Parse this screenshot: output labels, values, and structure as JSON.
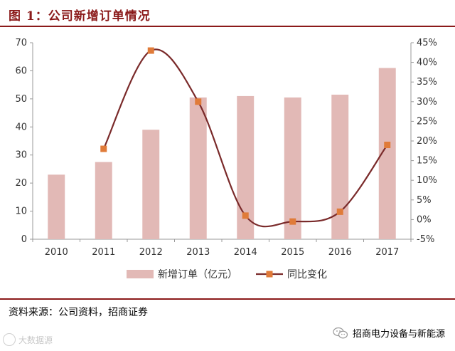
{
  "header": {
    "title": "图 1：公司新增订单情况"
  },
  "footer": {
    "source": "资料来源：公司资料，招商证券",
    "brand": "招商电力设备与新能源",
    "watermark": "大数据源"
  },
  "colors": {
    "bar": "#e2b9b6",
    "line": "#7a2a2a",
    "marker": "#e07b39",
    "title": "#8b1a1a"
  },
  "icons": {
    "brand": "wechat-icon",
    "watermark": "circle-logo-icon"
  },
  "chart_data": {
    "type": "bar",
    "categories": [
      "2010",
      "2011",
      "2012",
      "2013",
      "2014",
      "2015",
      "2016",
      "2017"
    ],
    "series": [
      {
        "name": "新增订单（亿元）",
        "type": "bar",
        "axis": "left",
        "values": [
          23,
          27.5,
          39,
          50.5,
          51,
          50.5,
          51.5,
          61
        ]
      },
      {
        "name": "同比变化",
        "type": "line",
        "axis": "right",
        "unit": "%",
        "values": [
          null,
          18,
          43,
          30,
          1,
          -0.5,
          2,
          19
        ]
      }
    ],
    "y_left": {
      "min": 0,
      "max": 70,
      "ticks": [
        "0",
        "10",
        "20",
        "30",
        "40",
        "50",
        "60",
        "70"
      ]
    },
    "y_right": {
      "min": -5,
      "max": 45,
      "ticks": [
        "-5%",
        "0%",
        "5%",
        "10%",
        "15%",
        "20%",
        "25%",
        "30%",
        "35%",
        "40%",
        "45%"
      ]
    },
    "grid": false,
    "legend_position": "bottom"
  }
}
